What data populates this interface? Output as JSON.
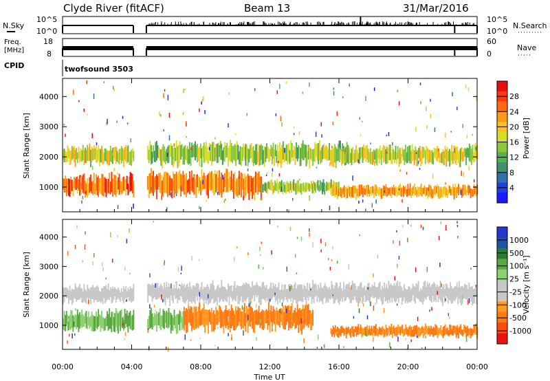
{
  "header": {
    "station": "Clyde River (fitACF)",
    "beam": "Beam 13",
    "date": "31/Mar/2016"
  },
  "panels": {
    "nsky": {
      "left_label": "N.Sky",
      "left_ticks": [
        "10^5",
        "10^0"
      ],
      "right_ticks": [
        "10^5",
        "10^0"
      ],
      "right_label": "N.Search"
    },
    "freq": {
      "left_label_1": "Freq.",
      "left_label_2": "[MHz]",
      "left_ticks": [
        "18",
        "8"
      ],
      "right_ticks": [
        "60",
        "0"
      ],
      "right_label": "Nave"
    },
    "cpid": {
      "label": "CPID",
      "value": "twofsound 3503"
    }
  },
  "colors": {
    "power_scale": [
      "#1a1aff",
      "#2340d8",
      "#2e6fb0",
      "#3f8f70",
      "#55b050",
      "#8cc83c",
      "#d8dc2a",
      "#ffc020",
      "#ff9a18",
      "#ff6a10",
      "#ff3a0a",
      "#e60f0f"
    ],
    "velocity_scale": [
      "#e61414",
      "#ff4a10",
      "#ff7a14",
      "#ff9a24",
      "#c8c8c8",
      "#c8c8c8",
      "#8cd070",
      "#5aa840",
      "#2f7a3a",
      "#2050a8",
      "#2436d0"
    ],
    "gray_band": "#c8c8c8"
  },
  "chart_data": [
    {
      "type": "line",
      "name": "nsky-nsearch",
      "x": [
        "00:00",
        "04:00",
        "04:50",
        "08:00",
        "12:00",
        "16:00",
        "20:00",
        "24:00"
      ],
      "series": [
        {
          "name": "N.Sky",
          "values": [
            1000,
            1000,
            1000,
            1000,
            1000,
            1000,
            1000,
            1000
          ]
        }
      ]
    },
    {
      "type": "line",
      "name": "freq-nave",
      "x": [
        "00:00",
        "04:00",
        "04:50",
        "08:00",
        "12:00",
        "16:00",
        "20:00",
        "24:00"
      ],
      "series": [
        {
          "name": "Freq.",
          "values": [
            10.5,
            10.5,
            10.5,
            10.5,
            10.5,
            10.5,
            10.5,
            10.5
          ]
        }
      ]
    },
    {
      "type": "heatmap",
      "name": "power",
      "ylabel": "Slant Range [km]",
      "yticks": [
        "1000",
        "2000",
        "3000",
        "4000"
      ],
      "ylim": [
        180,
        4600
      ],
      "colorbar_label": "Power [dB]",
      "colorbar_ticks": [
        "4",
        "8",
        "12",
        "16",
        "20",
        "24",
        "28"
      ],
      "clim": [
        0,
        30
      ],
      "bands": [
        {
          "t0": 0.0,
          "t1": 4.1,
          "r_center": 2050,
          "r_width": 420,
          "value": 16
        },
        {
          "t0": 0.0,
          "t1": 4.1,
          "r_center": 1050,
          "r_width": 520,
          "value": 24
        },
        {
          "t0": 4.9,
          "t1": 11.5,
          "r_center": 1100,
          "r_width": 600,
          "value": 22
        },
        {
          "t0": 4.9,
          "t1": 16.5,
          "r_center": 2100,
          "r_width": 520,
          "value": 14
        },
        {
          "t0": 11.5,
          "t1": 16.0,
          "r_center": 1000,
          "r_width": 300,
          "value": 14
        },
        {
          "t0": 16.0,
          "t1": 24.0,
          "r_center": 2050,
          "r_width": 420,
          "value": 16
        },
        {
          "t0": 15.5,
          "t1": 24.0,
          "r_center": 850,
          "r_width": 300,
          "value": 20
        }
      ]
    },
    {
      "type": "heatmap",
      "name": "velocity",
      "ylabel": "Slant Range [km]",
      "yticks": [
        "1000",
        "2000",
        "3000",
        "4000"
      ],
      "ylim": [
        180,
        4600
      ],
      "xlabel": "Time UT",
      "xticks": [
        "00:00",
        "04:00",
        "08:00",
        "12:00",
        "16:00",
        "20:00",
        "00:00"
      ],
      "xlim": [
        0,
        24
      ],
      "colorbar_label": "Velocity [m s-1]",
      "colorbar_ticks": [
        "1000",
        "500",
        "100",
        "25",
        "-25",
        "-100",
        "-500",
        "-1000"
      ],
      "bands": [
        {
          "t0": 0.0,
          "t1": 4.1,
          "r_center": 2050,
          "r_width": 420,
          "value": 0
        },
        {
          "t0": 0.0,
          "t1": 4.1,
          "r_center": 1150,
          "r_width": 500,
          "value": 150
        },
        {
          "t0": 4.9,
          "t1": 7.0,
          "r_center": 1150,
          "r_width": 500,
          "value": 150
        },
        {
          "t0": 7.0,
          "t1": 14.5,
          "r_center": 1250,
          "r_width": 620,
          "value": -200
        },
        {
          "t0": 4.9,
          "t1": 24.0,
          "r_center": 2100,
          "r_width": 480,
          "value": 0
        },
        {
          "t0": 15.5,
          "t1": 24.0,
          "r_center": 800,
          "r_width": 280,
          "value": -250
        }
      ]
    }
  ],
  "axes": {
    "xticks": [
      "00:00",
      "04:00",
      "08:00",
      "12:00",
      "16:00",
      "20:00",
      "00:00"
    ],
    "xlabel": "Time UT",
    "ylabel": "Slant Range [km]",
    "yticks": [
      "1000",
      "2000",
      "3000",
      "4000"
    ],
    "power_label": "Power [dB]",
    "power_ticks": [
      "28",
      "24",
      "20",
      "16",
      "12",
      "8",
      "4"
    ],
    "velocity_label": "Velocity [m s⁻¹]",
    "velocity_ticks": [
      "1000",
      "500",
      "100",
      "25",
      "-25",
      "-100",
      "-500",
      "-1000"
    ]
  }
}
